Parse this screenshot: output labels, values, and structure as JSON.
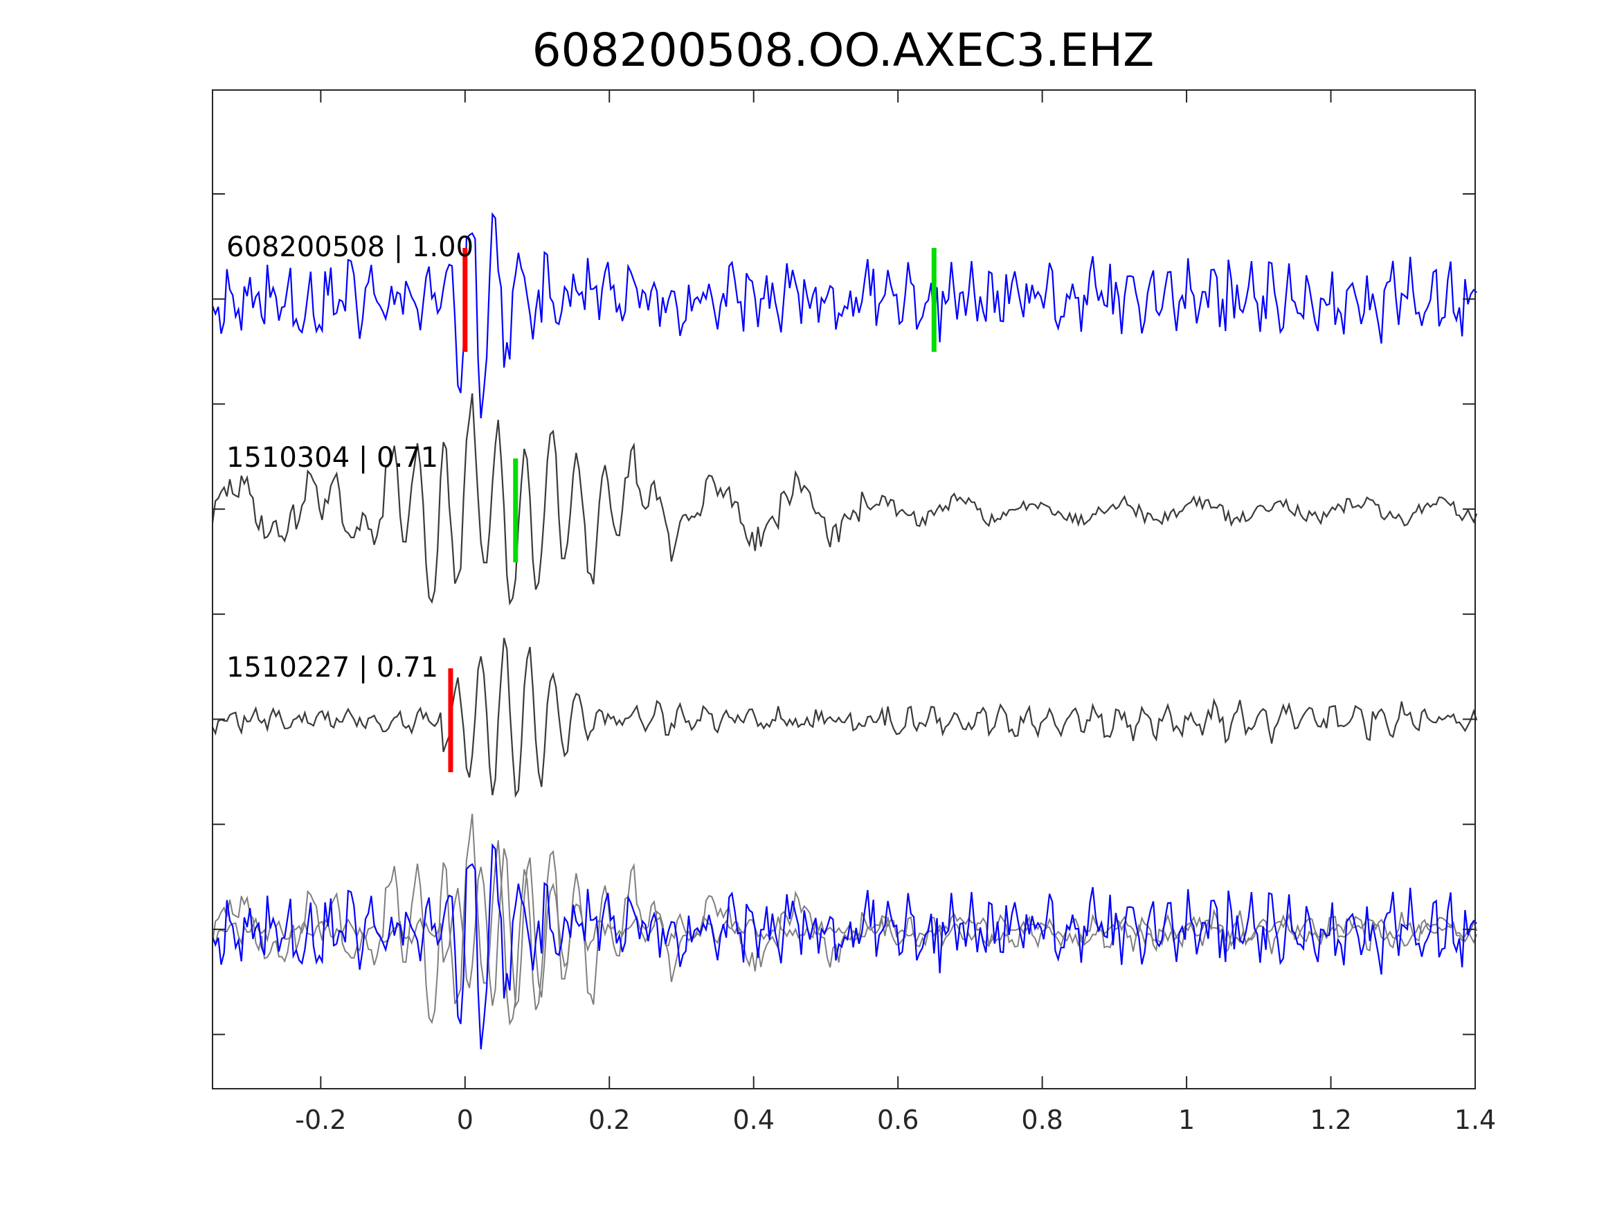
{
  "chart_data": {
    "type": "line",
    "title": "608200508.OO.AXEC3.EHZ",
    "xlabel": "",
    "ylabel": "",
    "xlim": [
      -0.35,
      1.4
    ],
    "xticks": [
      {
        "value": -0.2,
        "label": "-0.2"
      },
      {
        "value": 0,
        "label": "0"
      },
      {
        "value": 0.2,
        "label": "0.2"
      },
      {
        "value": 0.4,
        "label": "0.4"
      },
      {
        "value": 0.6,
        "label": "0.6"
      },
      {
        "value": 0.8,
        "label": "0.8"
      },
      {
        "value": 1,
        "label": "1"
      },
      {
        "value": 1.2,
        "label": "1.2"
      },
      {
        "value": 1.4,
        "label": "1.4"
      }
    ],
    "ytick_count": 9,
    "grid": false,
    "colors": {
      "target": "#0000ff",
      "template": "#3a3a3a",
      "overlay_template": "#7f7f7f",
      "p_pick": "#ff0000",
      "s_pick": "#00dd00",
      "axis": "#262626"
    },
    "traces": [
      {
        "id": "608200508",
        "label": "608200508 | 1.00",
        "color": "target",
        "offset": 0,
        "picks": [
          {
            "type": "P",
            "time": 0.0,
            "color": "p_pick"
          },
          {
            "type": "S",
            "time": 0.65,
            "color": "s_pick"
          }
        ]
      },
      {
        "id": "1510304",
        "label": "1510304 | 0.71",
        "color": "template",
        "offset": 1,
        "picks": [
          {
            "type": "S",
            "time": 0.07,
            "color": "s_pick"
          }
        ]
      },
      {
        "id": "1510227",
        "label": "1510227 | 0.71",
        "color": "template",
        "offset": 2,
        "picks": [
          {
            "type": "P",
            "time": -0.02,
            "color": "p_pick"
          }
        ]
      }
    ],
    "overlay": {
      "offset": 3,
      "traces": [
        "608200508",
        "1510304",
        "1510227"
      ]
    }
  }
}
